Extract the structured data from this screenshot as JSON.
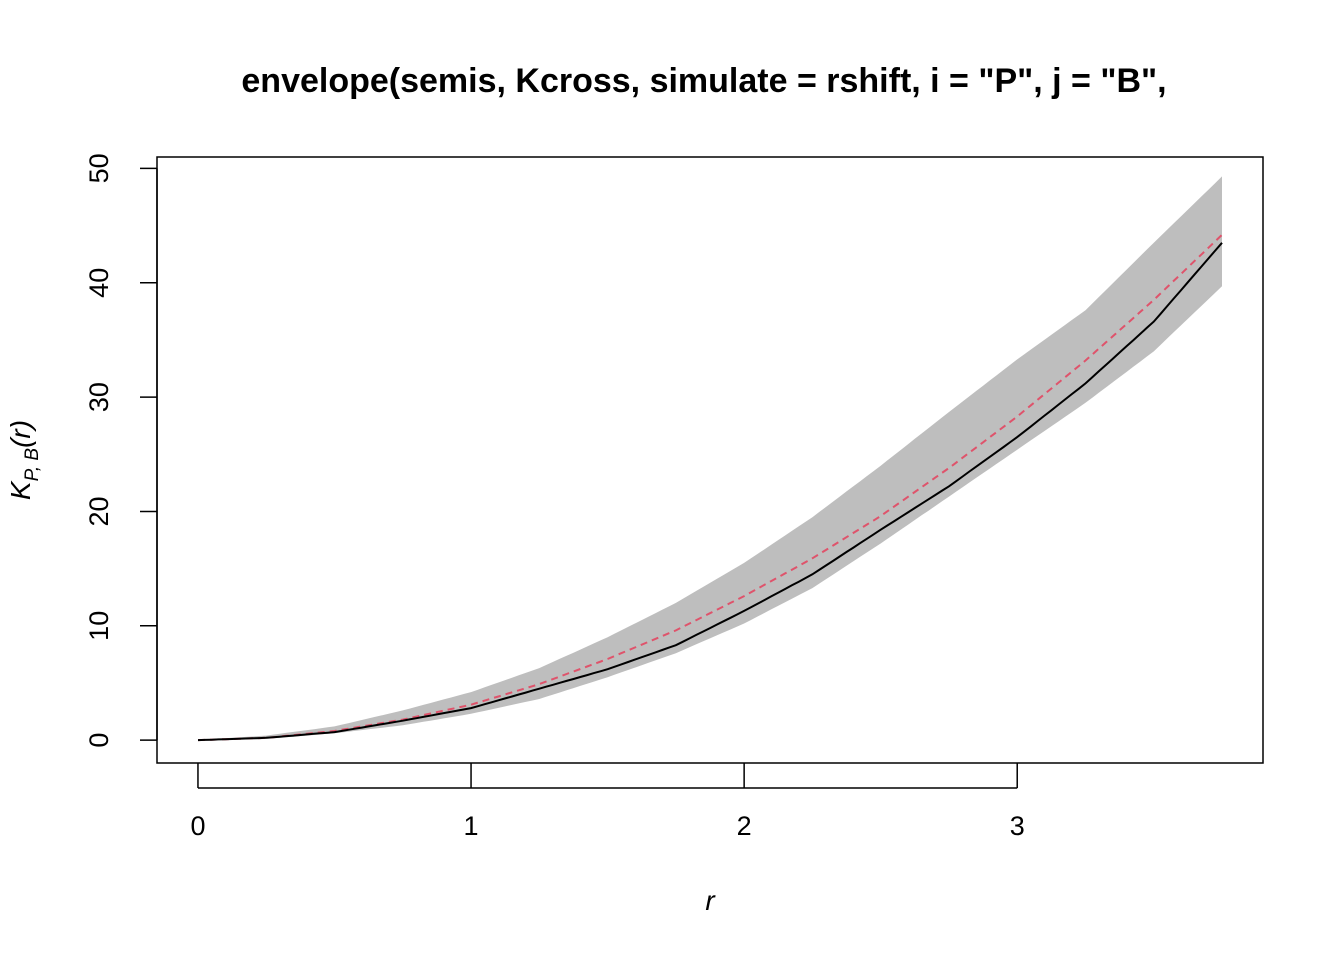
{
  "chart_data": {
    "type": "line",
    "title": "envelope(semis, Kcross, simulate = rshift, i = \"P\", j = \"B\",",
    "xlabel": "r",
    "ylabel": {
      "main": "K",
      "subscript": "P, B",
      "arg": "(r)"
    },
    "xlim": [
      -0.15,
      3.9
    ],
    "ylim": [
      -2,
      51
    ],
    "x_ticks": [
      0,
      1,
      2,
      3
    ],
    "x_tick_labels": [
      "0",
      "1",
      "2",
      "3"
    ],
    "y_ticks": [
      0,
      10,
      20,
      30,
      40,
      50
    ],
    "y_tick_labels": [
      "0",
      "10",
      "20",
      "30",
      "40",
      "50"
    ],
    "grid": false,
    "legend": "none",
    "x": [
      0,
      0.25,
      0.5,
      0.75,
      1.0,
      1.25,
      1.5,
      1.75,
      2.0,
      2.25,
      2.5,
      2.75,
      3.0,
      3.25,
      3.5,
      3.75
    ],
    "series": [
      {
        "role": "envelope_upper",
        "color": "#bebebe",
        "values": [
          0,
          0.4,
          1.2,
          2.6,
          4.2,
          6.3,
          9.0,
          12.0,
          15.5,
          19.5,
          24.0,
          28.7,
          33.3,
          37.6,
          43.5,
          49.3
        ]
      },
      {
        "role": "envelope_lower",
        "color": "#bebebe",
        "values": [
          0,
          0.1,
          0.6,
          1.3,
          2.3,
          3.6,
          5.5,
          7.6,
          10.2,
          13.3,
          17.2,
          21.3,
          25.4,
          29.5,
          34.0,
          39.7
        ]
      },
      {
        "role": "theoretical",
        "color": "#df536b",
        "dashed": true,
        "values": [
          0,
          0.2,
          0.8,
          1.8,
          3.1,
          4.9,
          7.1,
          9.6,
          12.6,
          15.9,
          19.6,
          23.8,
          28.3,
          33.2,
          38.5,
          44.2
        ]
      },
      {
        "role": "observed",
        "color": "#000000",
        "values": [
          0,
          0.2,
          0.7,
          1.7,
          2.8,
          4.5,
          6.2,
          8.3,
          11.3,
          14.5,
          18.4,
          22.2,
          26.5,
          31.2,
          36.6,
          43.5
        ]
      }
    ]
  }
}
